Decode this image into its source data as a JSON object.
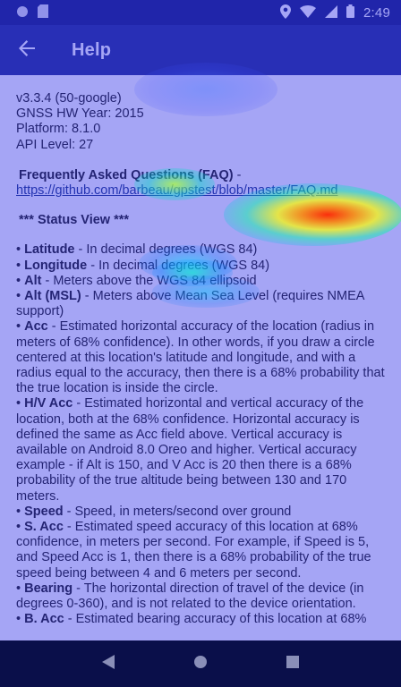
{
  "status_bar": {
    "time": "2:49",
    "icons": [
      "circle-icon",
      "sd-card-icon",
      "location-pin-icon",
      "wifi-icon",
      "signal-icon",
      "battery-icon"
    ]
  },
  "app_bar": {
    "title": "Help",
    "back_icon": "arrow-back-icon"
  },
  "version_info": {
    "version": "v3.3.4 (50-google)",
    "gnss_hw_year": "GNSS HW Year: 2015",
    "platform": "Platform: 8.1.0",
    "api_level": "API Level: 27"
  },
  "faq": {
    "title": "Frequently Asked Questions (FAQ)",
    "separator": " -",
    "url": "https://github.com/barbeau/gpstest/blob/master/FAQ.md"
  },
  "status_view": {
    "title": "*** Status View ***",
    "items": [
      {
        "term": "Latitude",
        "desc": " - In decimal degrees (WGS 84)"
      },
      {
        "term": "Longitude",
        "desc": " - In decimal degrees (WGS 84)"
      },
      {
        "term": "Alt",
        "desc": " - Meters above the WGS 84 ellipsoid"
      },
      {
        "term": "Alt (MSL)",
        "desc": " - Meters above Mean Sea Level (requires NMEA support)"
      },
      {
        "term": "Acc",
        "desc": " - Estimated horizontal accuracy of the location (radius in meters of 68% confidence). In other words, if you draw a circle centered at this location's latitude and longitude, and with a radius equal to the accuracy, then there is a 68% probability that the true location is inside the circle."
      },
      {
        "term": "H/V Acc",
        "desc": " - Estimated horizontal and vertical accuracy of the location, both at the 68% confidence. Horizontal accuracy is defined the same as Acc field above. Vertical accuracy is available on Android 8.0 Oreo and higher. Vertical accuracy example - if Alt is 150, and V Acc is 20 then there is a 68% probability of the true altitude being between 130 and 170 meters."
      },
      {
        "term": "Speed",
        "desc": " - Speed, in meters/second over ground"
      },
      {
        "term": "S. Acc",
        "desc": " - Estimated speed accuracy of this location at 68% confidence, in meters per second. For example, if Speed is 5, and Speed Acc is 1, then there is a 68% probability of the true speed being between 4 and 6 meters per second."
      },
      {
        "term": "Bearing",
        "desc": " - The horizontal direction of travel of the device (in degrees 0-360), and is not related to the device orientation."
      },
      {
        "term": "B. Acc",
        "desc": " - Estimated bearing accuracy of this location at 68%"
      }
    ]
  },
  "nav_bar": {
    "icons": [
      "back-triangle-icon",
      "home-circle-icon",
      "recents-square-icon"
    ]
  }
}
